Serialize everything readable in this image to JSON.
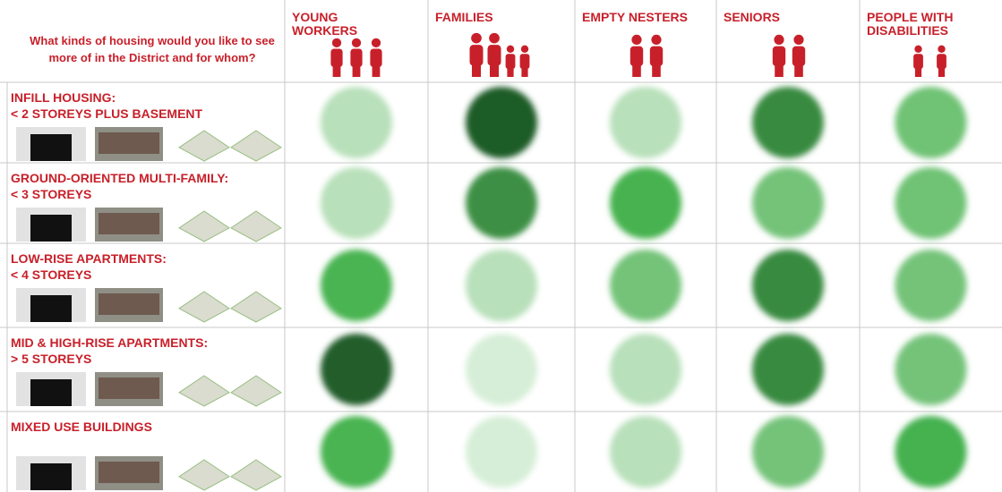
{
  "header": {
    "question": "What kinds of housing would you like to see more of in the District and for whom?",
    "columns": [
      "YOUNG WORKERS",
      "FAMILIES",
      "EMPTY NESTERS",
      "SENIORS",
      "PEOPLE WITH DISABILITIES"
    ]
  },
  "matrix": {
    "rows": [
      {
        "title": "INFILL HOUSING:",
        "subtitle": "< 2 STOREYS PLUS BASEMENT",
        "colors": [
          "#b8e0ba",
          "#1f5c27",
          "#b8e0ba",
          "#398a41",
          "#6fc274"
        ]
      },
      {
        "title": "GROUND-ORIENTED MULTI-FAMILY:",
        "subtitle": "< 3 STOREYS",
        "colors": [
          "#b8e0ba",
          "#3d8f45",
          "#46b250",
          "#74c379",
          "#6fc274"
        ]
      },
      {
        "title": "LOW-RISE APARTMENTS:",
        "subtitle": "< 4 STOREYS",
        "colors": [
          "#48b451",
          "#b8e0ba",
          "#74c379",
          "#398a41",
          "#74c379"
        ]
      },
      {
        "title": "MID & HIGH-RISE APARTMENTS:",
        "subtitle": "> 5 STOREYS",
        "colors": [
          "#245d2b",
          "#d6eed7",
          "#b8e0ba",
          "#398a41",
          "#74c379"
        ]
      },
      {
        "title": "MIXED USE BUILDINGS",
        "colors": [
          "#48b451",
          "#d6eed7",
          "#b8e0ba",
          "#74c379",
          "#45b14f"
        ]
      }
    ]
  }
}
